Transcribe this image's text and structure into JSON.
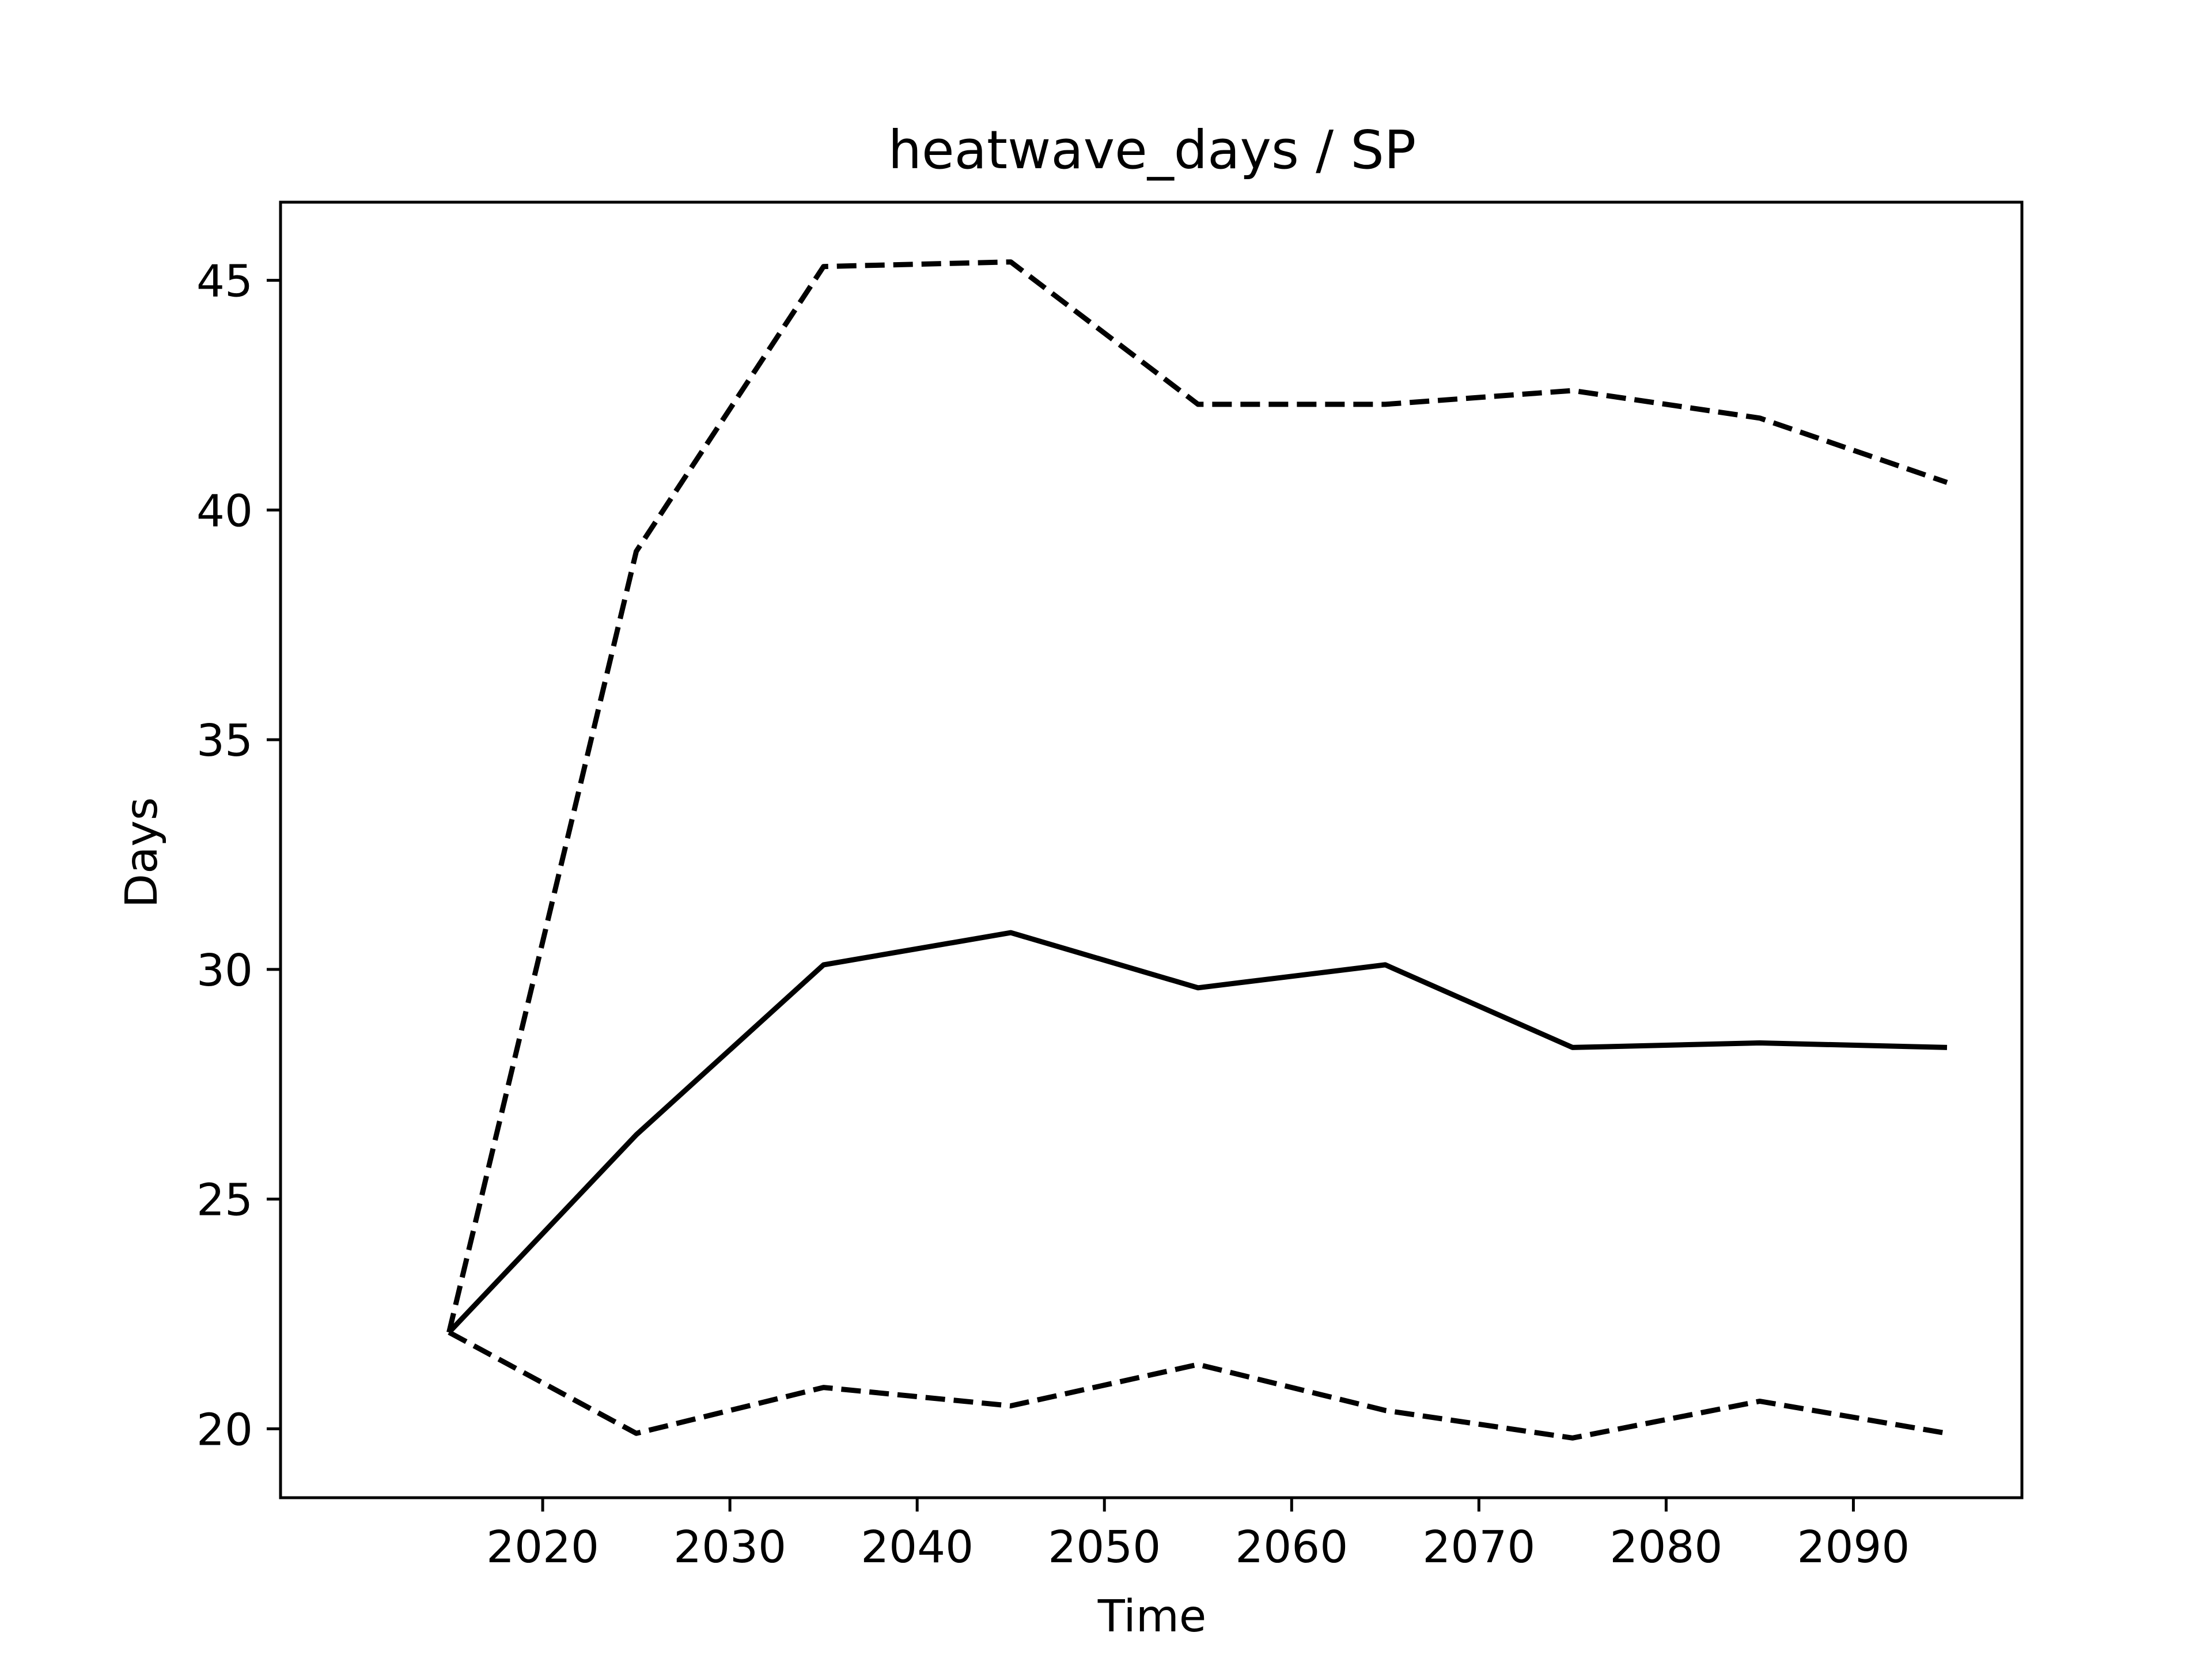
{
  "chart_data": {
    "type": "line",
    "title": "heatwave_days / SP",
    "xlabel": "Time",
    "ylabel": "Days",
    "x": [
      2015,
      2025,
      2035,
      2045,
      2055,
      2065,
      2075,
      2085,
      2095
    ],
    "series": [
      {
        "role": "upper",
        "line_style": "dashed",
        "color": "#000000",
        "values": [
          22.1,
          39.1,
          45.3,
          45.4,
          42.3,
          42.3,
          42.6,
          42.0,
          40.6
        ]
      },
      {
        "role": "median",
        "line_style": "solid",
        "color": "#000000",
        "values": [
          22.1,
          26.4,
          30.1,
          30.8,
          29.6,
          30.1,
          28.3,
          28.4,
          28.3
        ]
      },
      {
        "role": "lower",
        "line_style": "dashed",
        "color": "#000000",
        "values": [
          22.1,
          19.9,
          20.9,
          20.5,
          21.4,
          20.4,
          19.8,
          20.6,
          19.9
        ]
      }
    ],
    "xlim": [
      2006,
      2099
    ],
    "ylim": [
      18.5,
      46.7
    ],
    "xticks": [
      "2020",
      "2030",
      "2040",
      "2050",
      "2060",
      "2070",
      "2080",
      "2090"
    ],
    "yticks": [
      "20",
      "25",
      "30",
      "35",
      "40",
      "45"
    ],
    "grid": false,
    "legend": "none"
  }
}
